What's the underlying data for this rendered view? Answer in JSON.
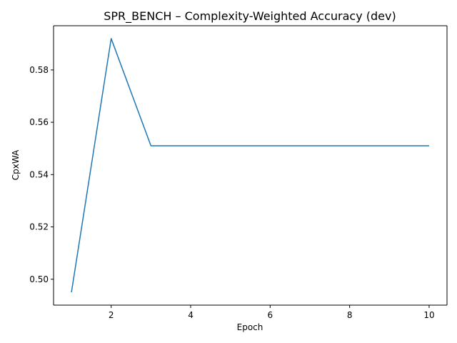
{
  "chart_data": {
    "type": "line",
    "title": "SPR_BENCH – Complexity-Weighted Accuracy (dev)",
    "xlabel": "Epoch",
    "ylabel": "CpxWA",
    "x": [
      1,
      2,
      3,
      4,
      5,
      6,
      7,
      8,
      9,
      10
    ],
    "series": [
      {
        "values": [
          0.495,
          0.592,
          0.551,
          0.551,
          0.551,
          0.551,
          0.551,
          0.551,
          0.551,
          0.551
        ],
        "color": "#1f77b4"
      }
    ],
    "xlim": [
      0.55,
      10.45
    ],
    "ylim": [
      0.4901,
      0.5969
    ],
    "xticks": [
      2,
      4,
      6,
      8,
      10
    ],
    "xtick_labels": [
      "2",
      "4",
      "6",
      "8",
      "10"
    ],
    "yticks": [
      0.5,
      0.52,
      0.54,
      0.56,
      0.58
    ],
    "ytick_labels": [
      "0.50",
      "0.52",
      "0.54",
      "0.56",
      "0.58"
    ],
    "grid": false,
    "legend": "none"
  }
}
